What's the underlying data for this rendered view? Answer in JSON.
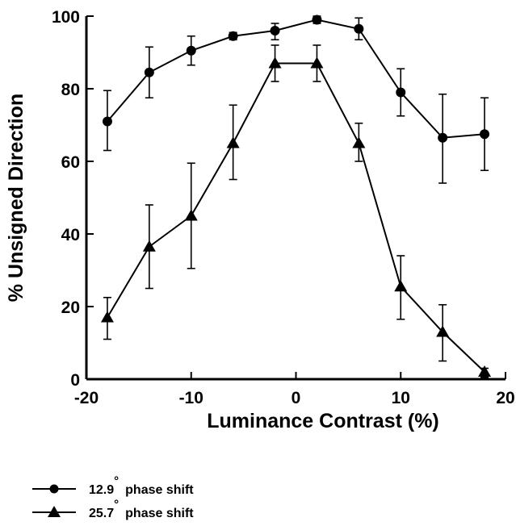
{
  "chart_data": {
    "type": "line",
    "xlabel": "Luminance Contrast (%)",
    "ylabel": "% Unsigned Direction",
    "xlim": [
      -20,
      20
    ],
    "ylim": [
      0,
      100
    ],
    "x_ticks": [
      "-20",
      "-10",
      "0",
      "10",
      "20"
    ],
    "y_ticks": [
      "0",
      "20",
      "40",
      "60",
      "80",
      "100"
    ],
    "grid": false,
    "legend_position": "bottom-left",
    "series": [
      {
        "name_value": "12.9",
        "name_degree": "°",
        "name_suffix": "phase shift",
        "marker": "circle",
        "x": [
          -18,
          -14,
          -10,
          -6,
          -2,
          2,
          6,
          10,
          14,
          18
        ],
        "y": [
          71,
          84.5,
          90.5,
          94.5,
          96,
          99,
          96.5,
          79,
          66.5,
          67.5
        ],
        "err_low": [
          63,
          77.5,
          86.5,
          93.5,
          93.5,
          98,
          93.5,
          72.5,
          54,
          57.5
        ],
        "err_high": [
          79.5,
          91.5,
          94.5,
          95.5,
          98,
          100,
          99.5,
          85.5,
          78.5,
          77.5
        ]
      },
      {
        "name_value": "25.7",
        "name_degree": "°",
        "name_suffix": "phase shift",
        "marker": "triangle",
        "x": [
          -18,
          -14,
          -10,
          -6,
          -2,
          2,
          6,
          10,
          14,
          18
        ],
        "y": [
          17,
          36.5,
          45,
          65,
          87,
          87,
          65,
          25.5,
          13,
          2
        ],
        "err_low": [
          11,
          25,
          30.5,
          55,
          82,
          82,
          60,
          16.5,
          5,
          0.5
        ],
        "err_high": [
          22.5,
          48,
          59.5,
          75.5,
          92,
          92,
          70.5,
          34,
          20.5,
          3
        ]
      }
    ]
  }
}
